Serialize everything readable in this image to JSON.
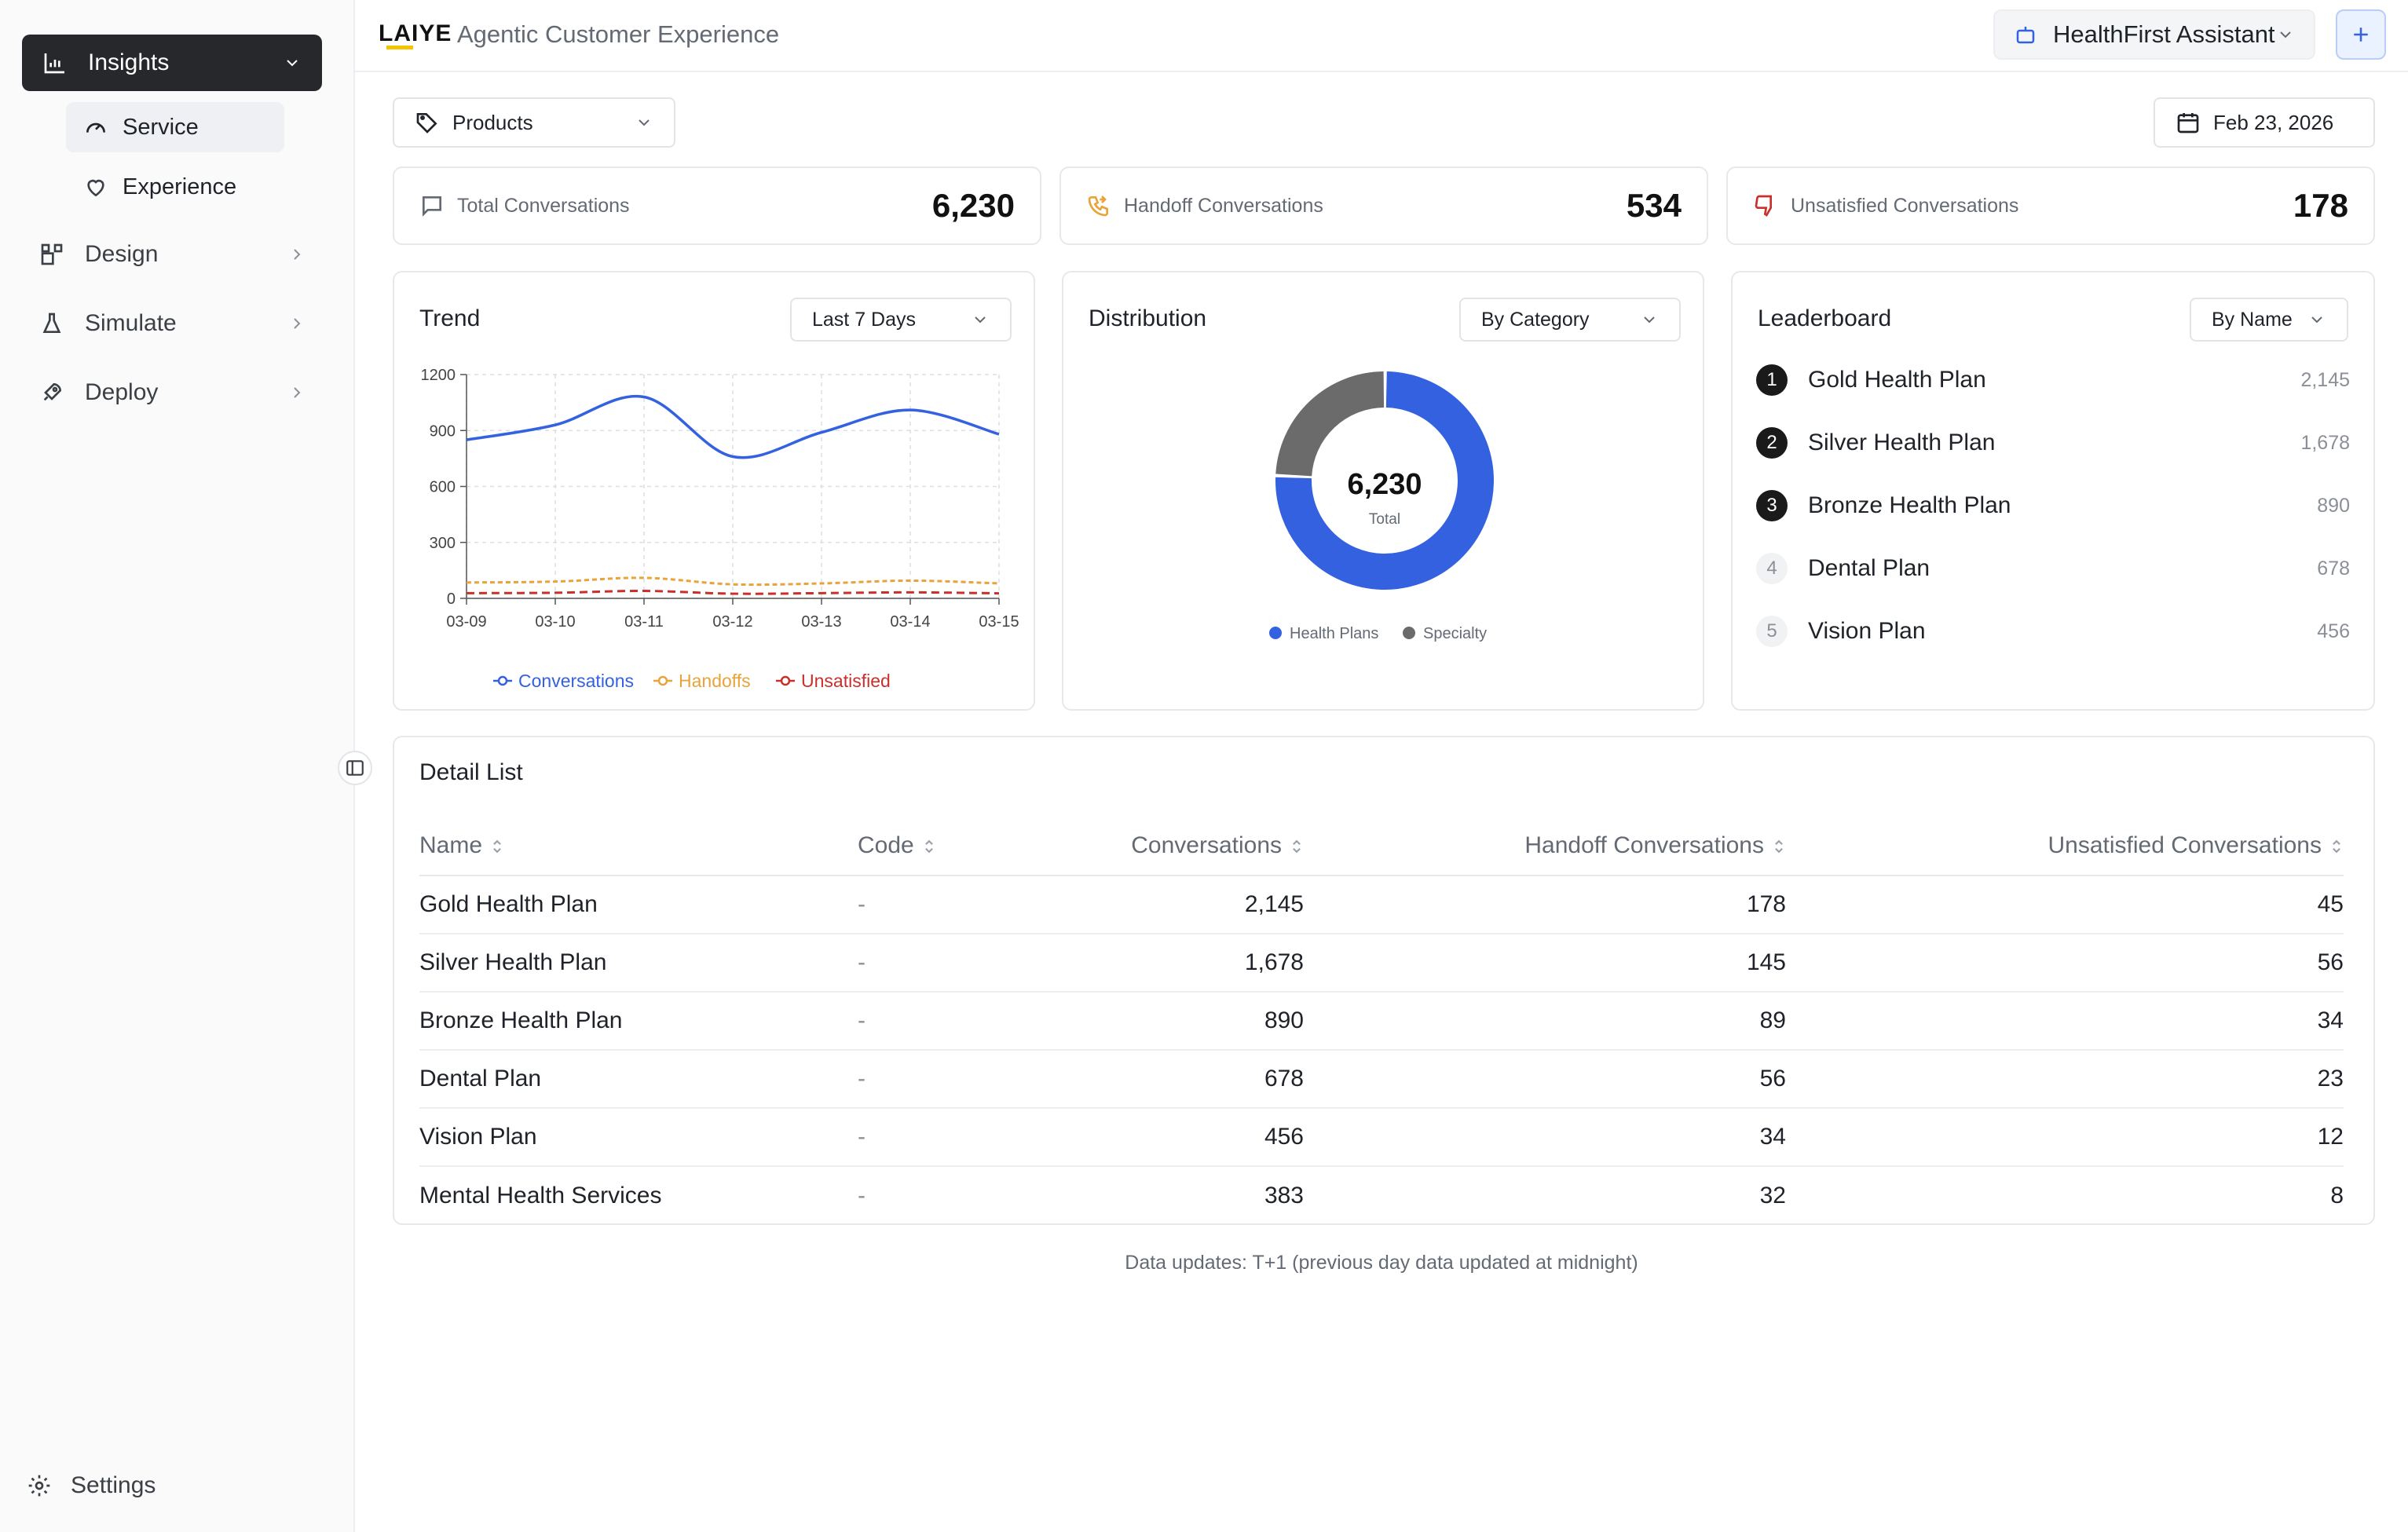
{
  "sidebar": {
    "insights_label": "Insights",
    "service_label": "Service",
    "experience_label": "Experience",
    "design_label": "Design",
    "simulate_label": "Simulate",
    "deploy_label": "Deploy",
    "settings_label": "Settings"
  },
  "header": {
    "logo_text": "LAIYE",
    "app_title": "Agentic Customer Experience",
    "assistant_label": "HealthFirst Assistant",
    "add_label": "+"
  },
  "filters": {
    "scope_label": "Products",
    "date_label": "Feb 23, 2026"
  },
  "stats": {
    "total": {
      "label": "Total Conversations",
      "value": "6,230"
    },
    "handoff": {
      "label": "Handoff Conversations",
      "value": "534"
    },
    "unsatisfied": {
      "label": "Unsatisfied Conversations",
      "value": "178"
    }
  },
  "trend": {
    "title": "Trend",
    "range_label": "Last 7 Days"
  },
  "distribution": {
    "title": "Distribution",
    "mode_label": "By Category",
    "center_value": "6,230",
    "center_label": "Total"
  },
  "leaderboard": {
    "title": "Leaderboard",
    "mode_label": "By Name",
    "items": [
      {
        "rank": "1",
        "name": "Gold Health Plan",
        "value": "2,145"
      },
      {
        "rank": "2",
        "name": "Silver Health Plan",
        "value": "1,678"
      },
      {
        "rank": "3",
        "name": "Bronze Health Plan",
        "value": "890"
      },
      {
        "rank": "4",
        "name": "Dental Plan",
        "value": "678"
      },
      {
        "rank": "5",
        "name": "Vision Plan",
        "value": "456"
      }
    ]
  },
  "detail": {
    "title": "Detail List",
    "columns": [
      "Name",
      "Code",
      "Conversations",
      "Handoff Conversations",
      "Unsatisfied Conversations"
    ],
    "rows": [
      [
        "Gold Health Plan",
        "-",
        "2,145",
        "178",
        "45"
      ],
      [
        "Silver Health Plan",
        "-",
        "1,678",
        "145",
        "56"
      ],
      [
        "Bronze Health Plan",
        "-",
        "890",
        "89",
        "34"
      ],
      [
        "Dental Plan",
        "-",
        "678",
        "56",
        "23"
      ],
      [
        "Vision Plan",
        "-",
        "456",
        "34",
        "12"
      ],
      [
        "Mental Health Services",
        "-",
        "383",
        "32",
        "8"
      ]
    ]
  },
  "footer_note": "Data updates: T+1 (previous day data updated at midnight)",
  "colors": {
    "accent": "#3461e0",
    "handoff": "#e8a33a",
    "unsatisfied": "#c9302c",
    "specialty": "#6b6b6b"
  },
  "chart_data": [
    {
      "type": "line",
      "x": [
        "03-09",
        "03-10",
        "03-11",
        "03-12",
        "03-13",
        "03-14",
        "03-15"
      ],
      "ylim": [
        0,
        1200
      ],
      "yticks": [
        0,
        300,
        600,
        900,
        1200
      ],
      "grid": true,
      "legend_position": "bottom",
      "series": [
        {
          "name": "Conversations",
          "values": [
            850,
            930,
            1080,
            760,
            890,
            1010,
            880
          ]
        },
        {
          "name": "Handoffs",
          "values": [
            85,
            90,
            110,
            75,
            80,
            95,
            80
          ]
        },
        {
          "name": "Unsatisfied",
          "values": [
            28,
            30,
            40,
            25,
            28,
            32,
            27
          ]
        }
      ]
    },
    {
      "type": "pie",
      "labels": [
        "Health Plans",
        "Specialty"
      ],
      "values": [
        4713,
        1517
      ],
      "legend_position": "bottom"
    }
  ]
}
